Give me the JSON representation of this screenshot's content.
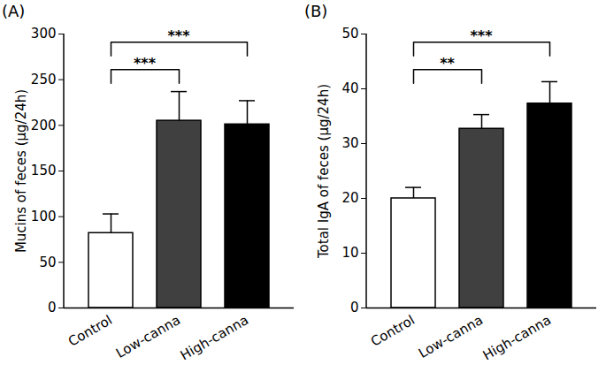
{
  "chart_data": [
    {
      "type": "bar",
      "title": "(A)",
      "y_label": "Mucins of feces (μg/24h)",
      "categories": [
        "Control",
        "Low-canna",
        "High-canna"
      ],
      "values": [
        82,
        205,
        201
      ],
      "errors": [
        21,
        32,
        26
      ],
      "colors": [
        "#ffffff",
        "#404040",
        "#000000"
      ],
      "ylim": [
        0,
        300
      ],
      "yticks": [
        0,
        50,
        100,
        150,
        200,
        250,
        300
      ],
      "annotations": [
        {
          "from": "Control",
          "to": "Low-canna",
          "label": "***"
        },
        {
          "from": "Control",
          "to": "High-canna",
          "label": "***"
        }
      ]
    },
    {
      "type": "bar",
      "title": "(B)",
      "y_label": "Total IgA of feces (μg/24h)",
      "categories": [
        "Control",
        "Low-canna",
        "High-canna"
      ],
      "values": [
        20,
        32.7,
        37.3
      ],
      "errors": [
        2,
        2.6,
        4
      ],
      "colors": [
        "#ffffff",
        "#404040",
        "#000000"
      ],
      "ylim": [
        0,
        50
      ],
      "yticks": [
        0,
        10,
        20,
        30,
        40,
        50
      ],
      "annotations": [
        {
          "from": "Control",
          "to": "Low-canna",
          "label": "**"
        },
        {
          "from": "Control",
          "to": "High-canna",
          "label": "***"
        }
      ]
    }
  ]
}
